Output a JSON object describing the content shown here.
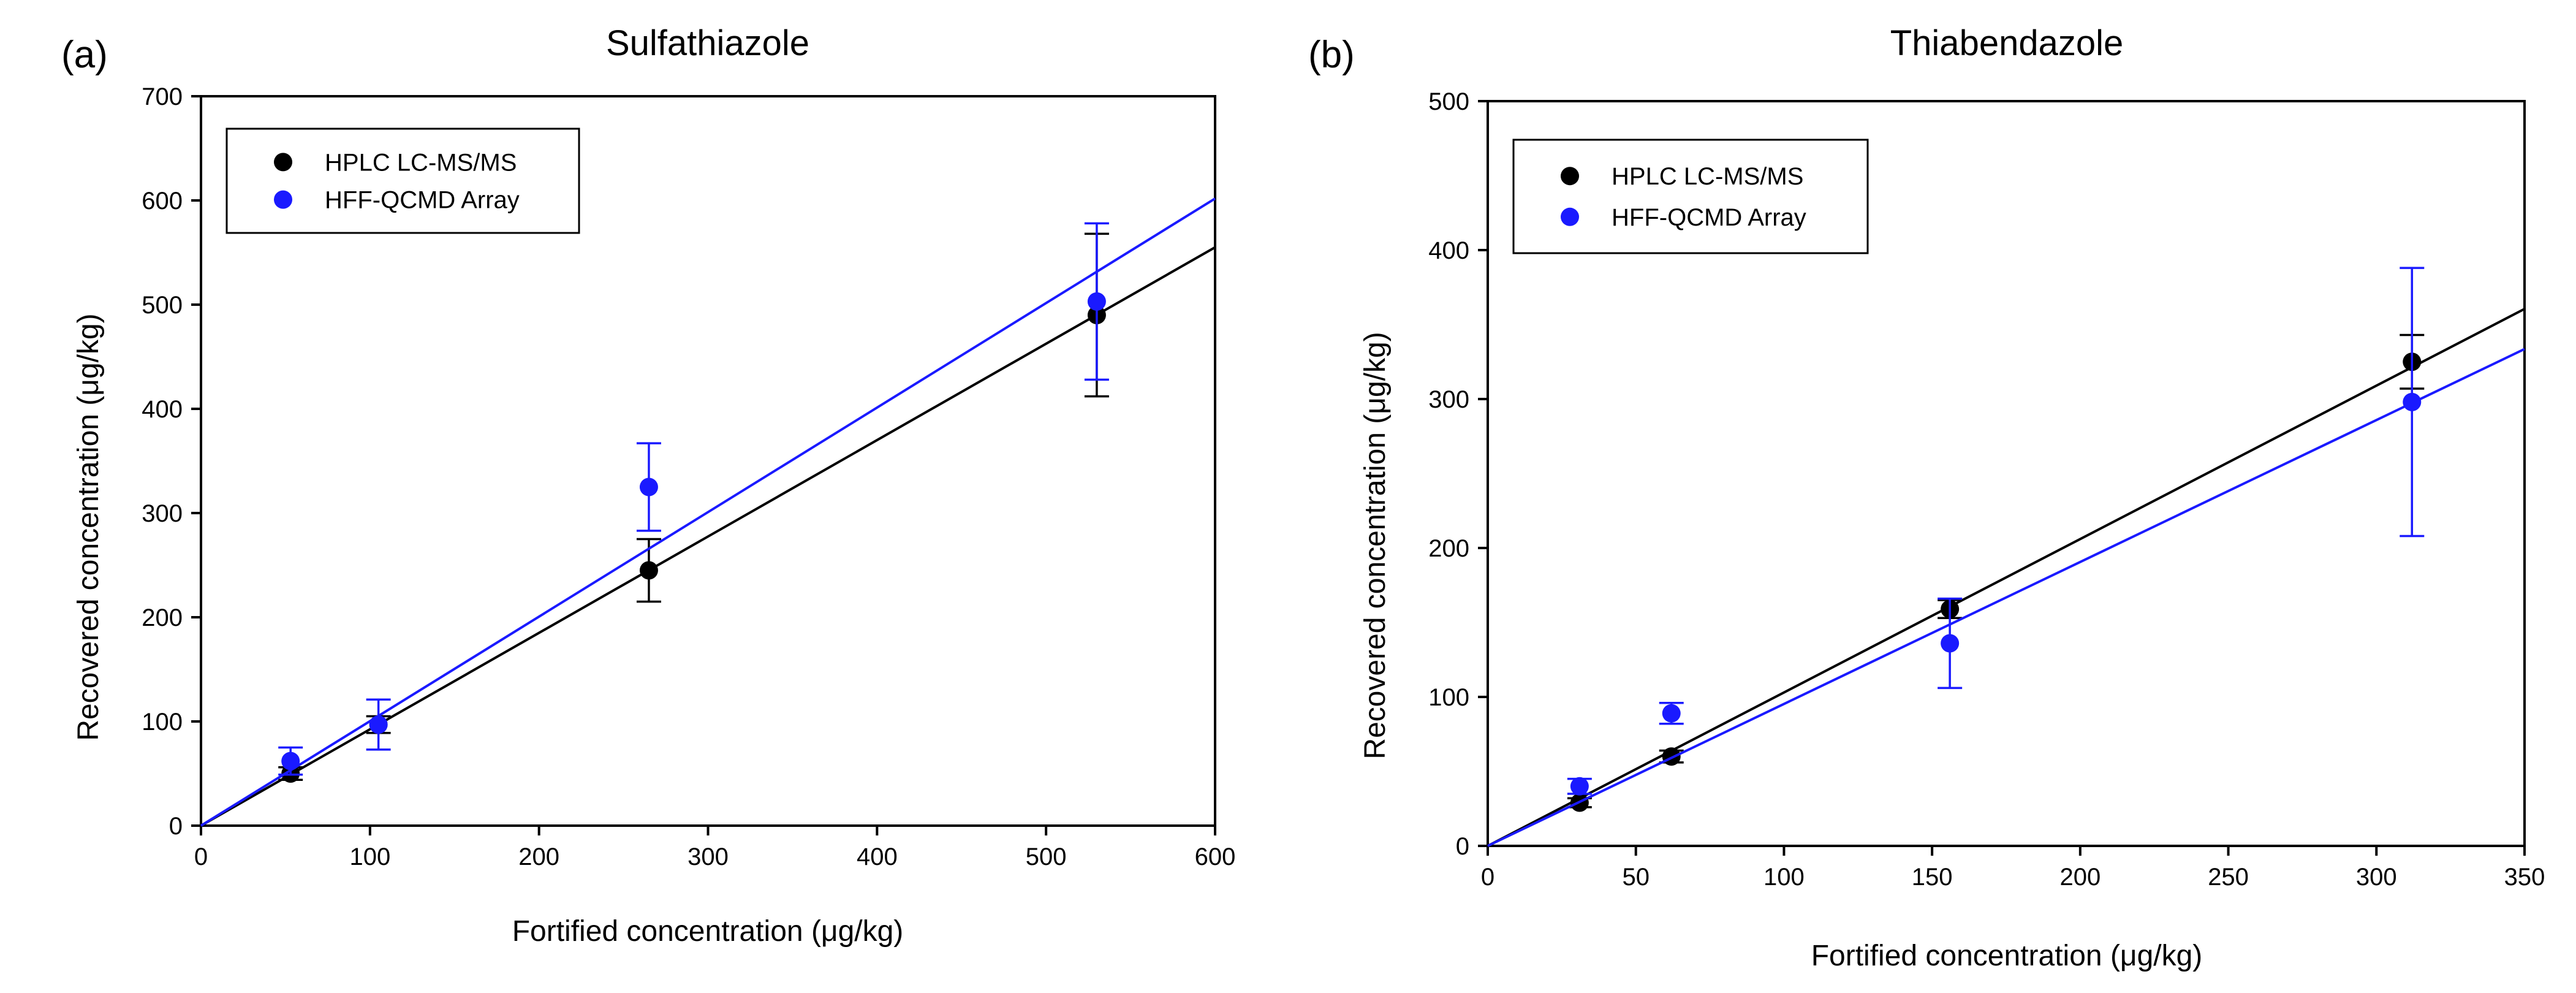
{
  "figure": {
    "panels": [
      {
        "label": "(a)",
        "title": "Sulfathiazole"
      },
      {
        "label": "(b)",
        "title": "Thiabendazole"
      }
    ]
  },
  "chart_data": [
    {
      "type": "scatter",
      "title": "Sulfathiazole",
      "panel_label": "(a)",
      "xlabel": "Fortified concentration (μg/kg)",
      "ylabel": "Recovered concentration (μg/kg)",
      "xlim": [
        0,
        600
      ],
      "ylim": [
        0,
        700
      ],
      "xticks": [
        0,
        100,
        200,
        300,
        400,
        500,
        600
      ],
      "yticks": [
        0,
        100,
        200,
        300,
        400,
        500,
        600,
        700
      ],
      "grid": false,
      "legend_position": "top-left",
      "series": [
        {
          "name": "HPLC LC-MS/MS",
          "color": "#000000",
          "x": [
            53,
            105,
            265,
            530
          ],
          "y": [
            50,
            97,
            245,
            490
          ],
          "yerr": [
            6,
            8,
            30,
            78
          ],
          "fit_slope": 0.925
        },
        {
          "name": "HFF-QCMD Array",
          "color": "#1a1aff",
          "x": [
            53,
            105,
            265,
            530
          ],
          "y": [
            62,
            97,
            325,
            503
          ],
          "yerr": [
            13,
            24,
            42,
            75
          ],
          "fit_slope": 1.003
        }
      ]
    },
    {
      "type": "scatter",
      "title": "Thiabendazole",
      "panel_label": "(b)",
      "xlabel": "Fortified concentration (μg/kg)",
      "ylabel": "Recovered concentration (μg/kg)",
      "xlim": [
        0,
        350
      ],
      "ylim": [
        0,
        500
      ],
      "xticks": [
        0,
        50,
        100,
        150,
        200,
        250,
        300,
        350
      ],
      "yticks": [
        0,
        100,
        200,
        300,
        400,
        500
      ],
      "grid": false,
      "legend_position": "top-left",
      "series": [
        {
          "name": "HPLC LC-MS/MS",
          "color": "#000000",
          "x": [
            31,
            62,
            156,
            312
          ],
          "y": [
            29,
            60,
            159,
            325
          ],
          "yerr": [
            3,
            4,
            6,
            18
          ],
          "fit_slope": 1.03
        },
        {
          "name": "HFF-QCMD Array",
          "color": "#1a1aff",
          "x": [
            31,
            62,
            156,
            312
          ],
          "y": [
            40,
            89,
            136,
            298
          ],
          "yerr": [
            5,
            7,
            30,
            90
          ],
          "fit_slope": 0.953
        }
      ]
    }
  ]
}
